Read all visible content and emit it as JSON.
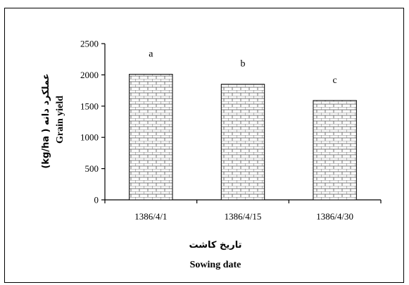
{
  "chart_data": {
    "type": "bar",
    "categories": [
      "1386/4/1",
      "1386/4/15",
      "1386/4/30"
    ],
    "values": [
      2010,
      1850,
      1590
    ],
    "significance_letters": [
      "a",
      "b",
      "c"
    ],
    "ylim": [
      0,
      2500
    ],
    "yticks": [
      0,
      500,
      1000,
      1500,
      2000,
      2500
    ],
    "xlabel_fa": "تاریخ کاشت",
    "xlabel_en": "Sowing date",
    "ylabel_en": "Grain yield",
    "ylabel_fa": "عملکرد دانه ( kg/ha)",
    "grid": false,
    "bar_pattern": "brick",
    "colors": {
      "bar_fill": "#ffffff",
      "bar_pattern": "#000000",
      "axis": "#000000"
    }
  }
}
